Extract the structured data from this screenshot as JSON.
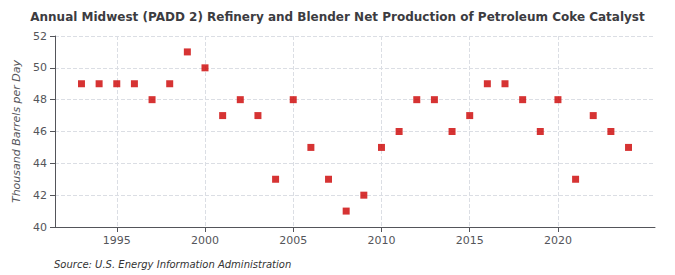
{
  "chart_data": {
    "type": "scatter",
    "title": "Annual Midwest (PADD 2) Refinery and Blender Net Production of Petroleum Coke Catalyst",
    "ylabel": "Thousand Barrels per Day",
    "annotation": "Source: U.S. Energy Information Administration",
    "x": [
      1993,
      1994,
      1995,
      1996,
      1997,
      1998,
      1999,
      2000,
      2001,
      2002,
      2003,
      2004,
      2005,
      2006,
      2007,
      2008,
      2009,
      2010,
      2011,
      2012,
      2013,
      2014,
      2015,
      2016,
      2017,
      2018,
      2019,
      2020,
      2021,
      2022,
      2023,
      2024
    ],
    "values": [
      49,
      49,
      49,
      49,
      48,
      49,
      51,
      50,
      47,
      48,
      47,
      43,
      48,
      45,
      43,
      41,
      42,
      45,
      46,
      48,
      48,
      46,
      47,
      49,
      49,
      48,
      46,
      48,
      43,
      47,
      46,
      45
    ],
    "color": "#cc0000",
    "marker": "square",
    "xlim": [
      1991.5,
      2025.5
    ],
    "xticks": [
      1995,
      2000,
      2005,
      2010,
      2015,
      2020
    ],
    "ylim": [
      40,
      52
    ],
    "yticks": [
      40,
      42,
      44,
      46,
      48,
      50,
      52
    ],
    "grid": true
  }
}
